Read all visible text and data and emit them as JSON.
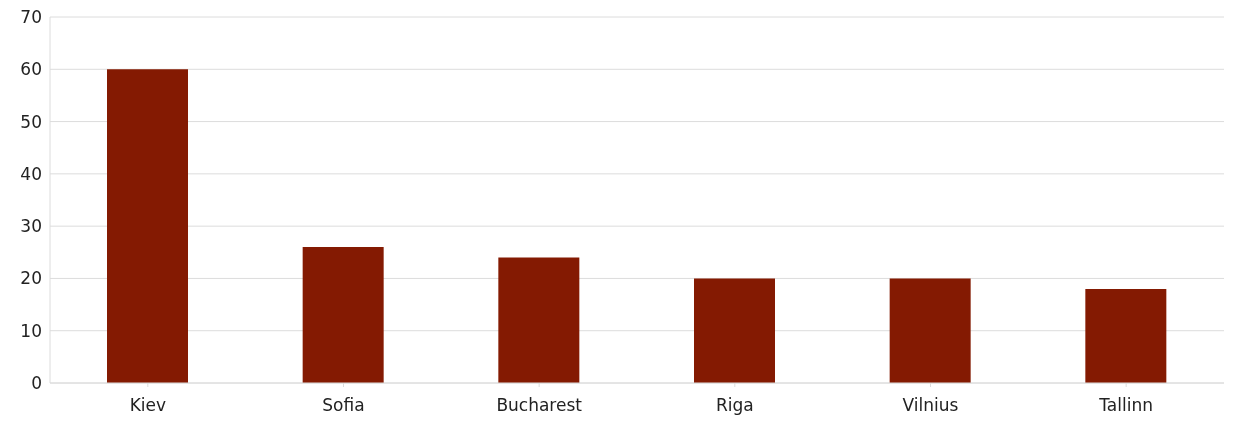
{
  "chart_data": {
    "type": "bar",
    "categories": [
      "Kiev",
      "Sofia",
      "Bucharest",
      "Riga",
      "Vilnius",
      "Tallinn"
    ],
    "values": [
      60,
      26,
      24,
      20,
      20,
      18
    ],
    "color": "#841a02",
    "ylim": [
      0,
      70
    ],
    "yticks": [
      0,
      10,
      20,
      30,
      40,
      50,
      60,
      70
    ],
    "grid": "y"
  }
}
